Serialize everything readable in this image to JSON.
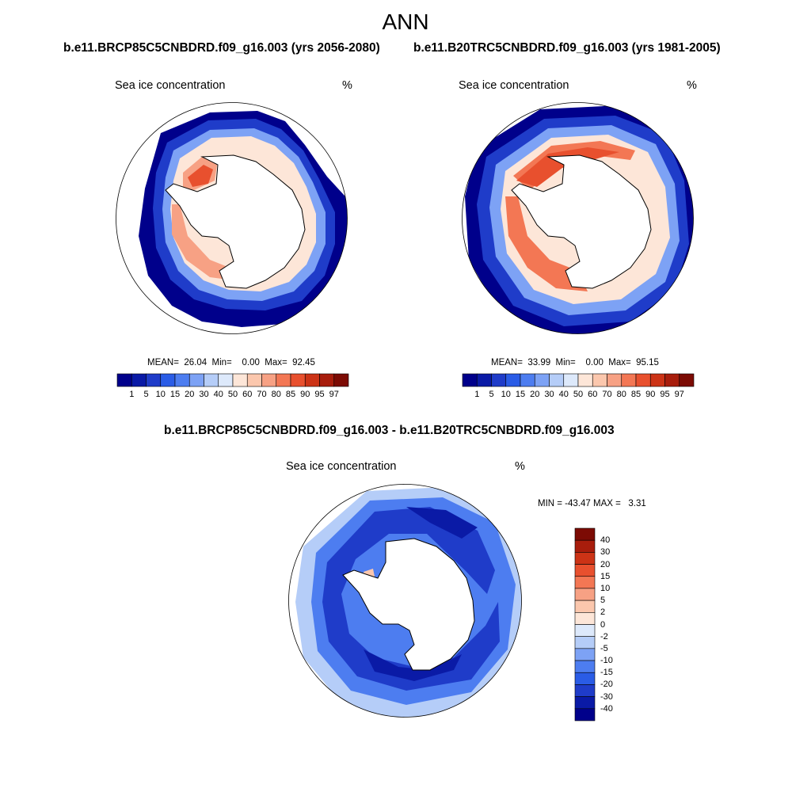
{
  "figure_title": "ANN",
  "panels": {
    "left": {
      "run_title": "b.e11.BRCP85C5CNBDRD.f09_g16.003 (yrs 2056-2080)",
      "variable": "Sea ice concentration",
      "unit": "%",
      "stats": {
        "mean": "26.04",
        "min": "0.00",
        "max": "92.45"
      },
      "stats_text": "MEAN=  26.04  Min=    0.00  Max=  92.45"
    },
    "right": {
      "run_title": "b.e11.B20TRC5CNBDRD.f09_g16.003 (yrs 1981-2005)",
      "variable": "Sea ice concentration",
      "unit": "%",
      "stats": {
        "mean": "33.99",
        "min": "0.00",
        "max": "95.15"
      },
      "stats_text": "MEAN=  33.99  Min=    0.00  Max=  95.15"
    },
    "diff": {
      "run_title": "b.e11.BRCP85C5CNBDRD.f09_g16.003 - b.e11.B20TRC5CNBDRD.f09_g16.003",
      "variable": "Sea ice concentration",
      "unit": "%",
      "stats": {
        "min": "-43.47",
        "max": "3.31"
      },
      "stats_text": "MIN = -43.47 MAX =   3.31"
    }
  },
  "colorbar_abs": {
    "labels": [
      "1",
      "5",
      "10",
      "15",
      "20",
      "30",
      "40",
      "50",
      "60",
      "70",
      "80",
      "85",
      "90",
      "95",
      "97"
    ],
    "colors": [
      "#00008b",
      "#0a1aa6",
      "#1f3cc9",
      "#2a5ce6",
      "#4d7df0",
      "#7da2f5",
      "#b5cdf8",
      "#dde9fb",
      "#fde6d8",
      "#fbc7ad",
      "#f7a184",
      "#f37754",
      "#e8502e",
      "#cc3316",
      "#a81d0c",
      "#7c0b04"
    ]
  },
  "colorbar_diff": {
    "labels": [
      "40",
      "30",
      "20",
      "15",
      "10",
      "5",
      "2",
      "0",
      "-2",
      "-5",
      "-10",
      "-15",
      "-20",
      "-30",
      "-40"
    ],
    "colors": [
      "#7c0b04",
      "#a81d0c",
      "#cc3316",
      "#e8502e",
      "#f37754",
      "#f7a184",
      "#fbc7ad",
      "#fde6d8",
      "#dde9fb",
      "#b5cdf8",
      "#7da2f5",
      "#4d7df0",
      "#2a5ce6",
      "#1f3cc9",
      "#0a1aa6",
      "#00008b"
    ]
  }
}
